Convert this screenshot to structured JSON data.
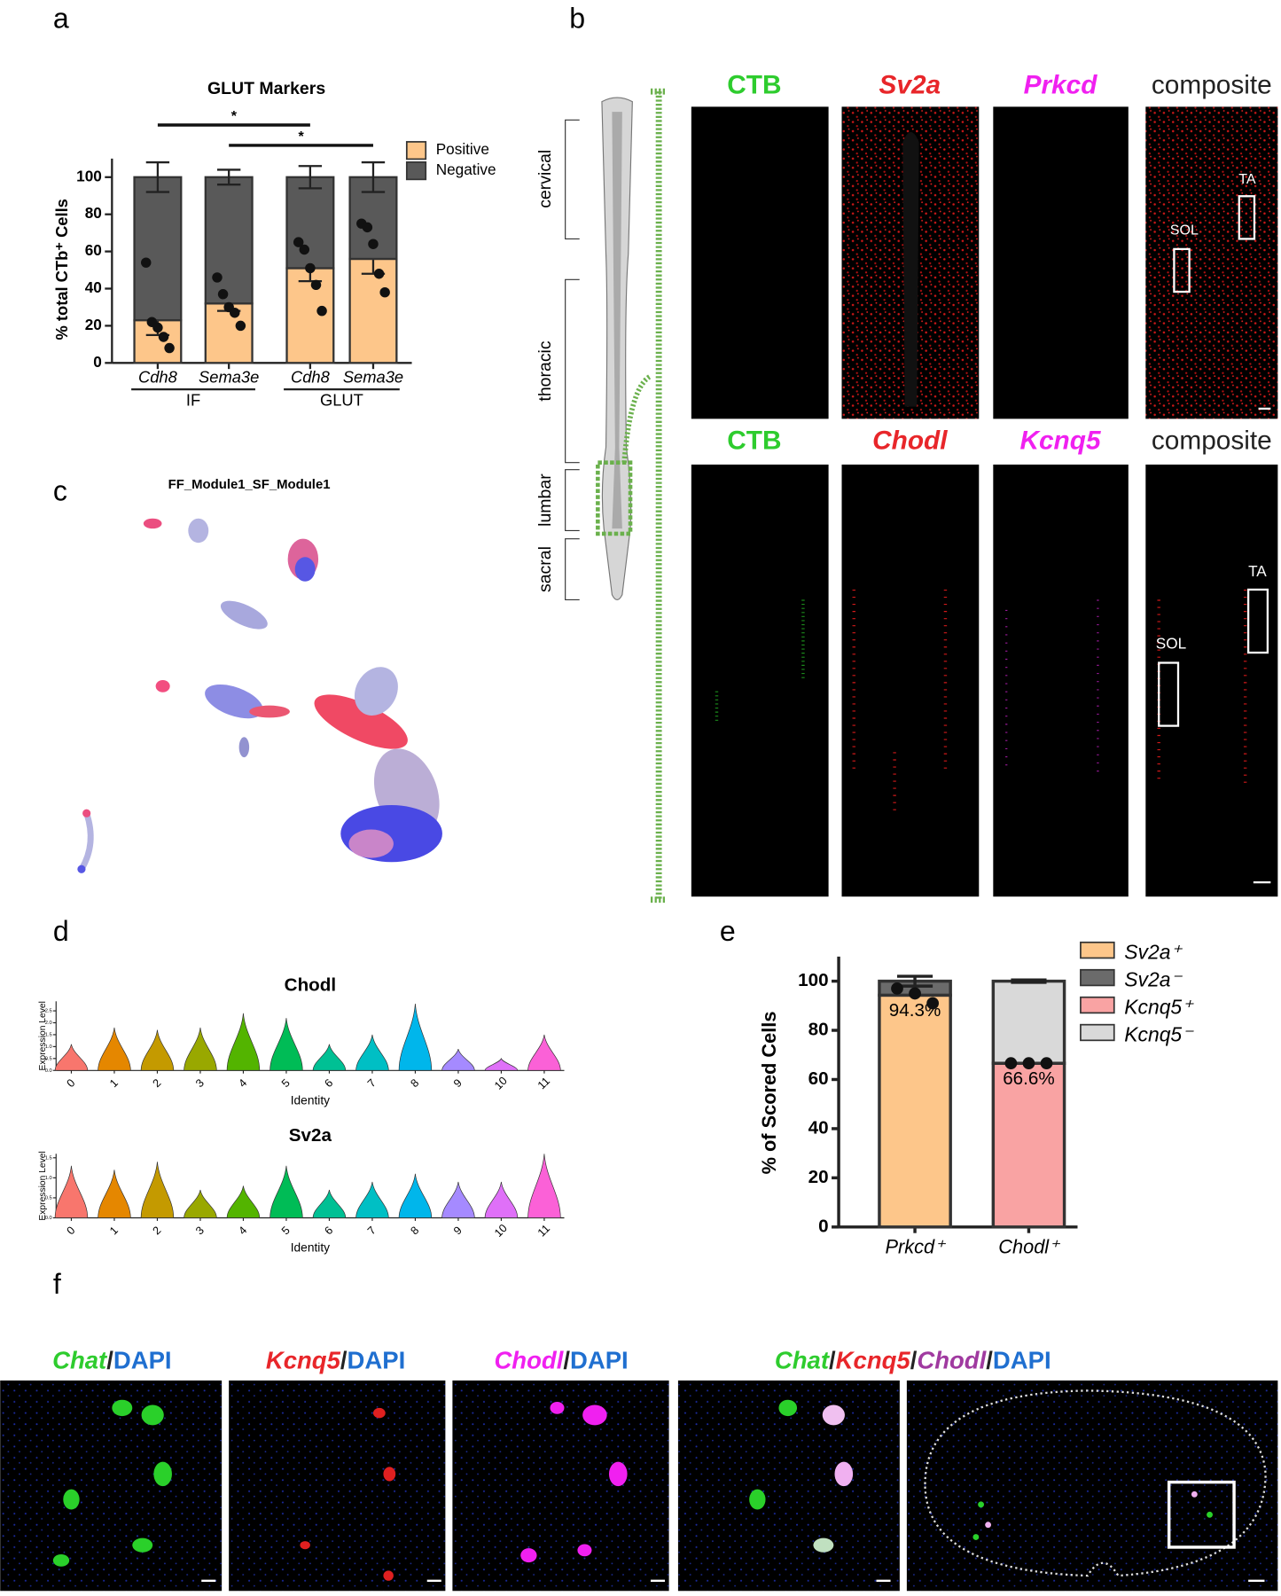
{
  "panel_labels": [
    "a",
    "b",
    "c",
    "d",
    "e",
    "f"
  ],
  "chart_data": [
    {
      "type": "stacked_bar",
      "title": "GLUT Markers",
      "y_label": "% total CTb⁺ Cells",
      "categories": [
        "Cdh8",
        "Sema3e",
        "Cdh8",
        "Sema3e"
      ],
      "groups": [
        "IF",
        "GLUT"
      ],
      "series": [
        {
          "name": "Positive",
          "color": "#fdc68a",
          "values": [
            23,
            32,
            51,
            56
          ],
          "errors": [
            8,
            4,
            7,
            8
          ]
        },
        {
          "name": "Negative",
          "color": "#595959",
          "values": [
            77,
            68,
            49,
            44
          ],
          "errors": [
            8,
            4,
            6,
            8
          ]
        }
      ],
      "points": [
        [
          54,
          22,
          19,
          14,
          8
        ],
        [
          46,
          37,
          30,
          27,
          20
        ],
        [
          65,
          61,
          51,
          42,
          28
        ],
        [
          75,
          73,
          64,
          48,
          38
        ]
      ],
      "annotations": [
        "*",
        "*"
      ],
      "ylim": [
        0,
        110
      ],
      "yticks": [
        0,
        20,
        40,
        60,
        80,
        100
      ]
    },
    {
      "type": "violin",
      "title": "Chodl",
      "y_label": "Expression Level",
      "x_label": "Identity",
      "categories": [
        "0",
        "1",
        "2",
        "3",
        "4",
        "5",
        "6",
        "7",
        "8",
        "9",
        "10",
        "11"
      ],
      "values": [
        1.1,
        1.8,
        1.7,
        1.8,
        2.4,
        2.2,
        1.1,
        1.5,
        2.8,
        0.9,
        0.5,
        1.5
      ],
      "colors": [
        "#f8766d",
        "#e58700",
        "#c49a00",
        "#99a800",
        "#53b400",
        "#00bc56",
        "#00c094",
        "#00bfc4",
        "#00b6eb",
        "#a58aff",
        "#df70f8",
        "#fb61d7"
      ],
      "ylim": [
        0,
        2.9
      ],
      "yticks": [
        {
          "value": 0,
          "label": "0.0"
        },
        {
          "value": 0.5,
          "label": "0.5"
        },
        {
          "value": 1,
          "label": "1.0"
        },
        {
          "value": 1.5,
          "label": "1.5"
        },
        {
          "value": 2,
          "label": "2.0"
        },
        {
          "value": 2.5,
          "label": "2.5"
        }
      ]
    },
    {
      "type": "violin",
      "title": "Sv2a",
      "y_label": "Expression Level",
      "x_label": "Identity",
      "categories": [
        "0",
        "1",
        "2",
        "3",
        "4",
        "5",
        "6",
        "7",
        "8",
        "9",
        "10",
        "11"
      ],
      "values": [
        1.3,
        1.2,
        1.4,
        0.7,
        0.8,
        1.3,
        0.7,
        0.9,
        1.1,
        0.9,
        0.9,
        1.6
      ],
      "colors": [
        "#f8766d",
        "#e58700",
        "#c49a00",
        "#99a800",
        "#53b400",
        "#00bc56",
        "#00c094",
        "#00bfc4",
        "#00b6eb",
        "#a58aff",
        "#df70f8",
        "#fb61d7"
      ],
      "ylim": [
        0,
        1.6
      ],
      "yticks": [
        {
          "value": 0,
          "label": "0.0"
        },
        {
          "value": 0.5,
          "label": "0.5"
        },
        {
          "value": 1,
          "label": "1.0"
        },
        {
          "value": 1.5,
          "label": "1.5"
        }
      ]
    },
    {
      "type": "stacked_bar",
      "y_label": "% of Scored Cells",
      "categories": [
        "Prkcd⁺",
        "Chodl⁺"
      ],
      "series": [
        {
          "name": "Sv2a⁺",
          "color": "#fdc68a",
          "values": [
            94.3,
            null
          ],
          "value_labels": [
            "94.3%",
            null
          ],
          "errors": [
            null,
            null
          ]
        },
        {
          "name": "Sv2a⁻",
          "color": "#6b6b6b",
          "values": [
            5.7,
            null
          ],
          "errors": [
            2,
            null
          ]
        },
        {
          "name": "Kcnq5⁺",
          "color": "#f9a3a3",
          "values": [
            null,
            66.6
          ],
          "value_labels": [
            null,
            "66.6%"
          ],
          "errors": [
            null,
            null
          ]
        },
        {
          "name": "Kcnq5⁻",
          "color": "#d9d9d9",
          "values": [
            null,
            33.4
          ],
          "errors": [
            null,
            0.5
          ]
        }
      ],
      "points": [
        [
          97,
          95,
          91
        ],
        [
          66.6,
          66.6,
          66.6
        ]
      ],
      "ylim": [
        0,
        110
      ],
      "yticks": [
        0,
        20,
        40,
        60,
        80,
        100
      ]
    }
  ],
  "panel_b": {
    "top_titles": [
      "CTB",
      "Sv2a",
      "Prkcd",
      "composite"
    ],
    "bottom_titles": [
      "CTB",
      "Chodl",
      "Kcnq5",
      "composite"
    ],
    "regions": [
      "cervical",
      "thoracic",
      "lumbar",
      "sacral"
    ],
    "boxes": [
      "SOL",
      "TA"
    ]
  },
  "panel_c": {
    "title": "FF_Module1_SF_Module1"
  },
  "panel_f": {
    "titles": [
      [
        "Chat",
        "/",
        "DAPI"
      ],
      [
        "Kcnq5",
        "/",
        "DAPI"
      ],
      [
        "Chodl",
        "/",
        "DAPI"
      ],
      [
        "Chat",
        "/",
        "Kcnq5",
        "/",
        "Chodl",
        "/",
        "DAPI"
      ]
    ]
  }
}
